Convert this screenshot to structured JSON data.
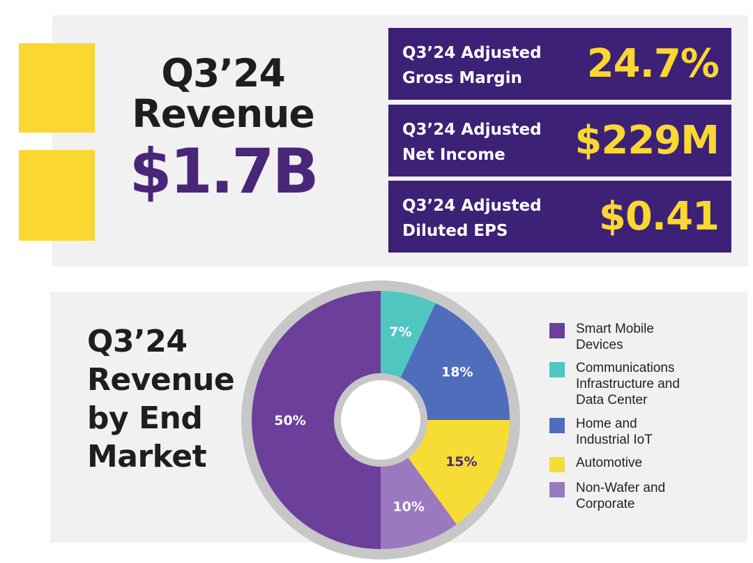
{
  "headline": {
    "revenue_title_line1": "Q3’24",
    "revenue_title_line2": "Revenue",
    "revenue_value": "$1.7B"
  },
  "metrics": [
    {
      "label_line1": "Q3’24 Adjusted",
      "label_line2": "Gross Margin",
      "value": "24.7%"
    },
    {
      "label_line1": "Q3’24 Adjusted",
      "label_line2": "Net Income",
      "value": "$229M"
    },
    {
      "label_line1": "Q3’24 Adjusted",
      "label_line2": "Diluted EPS",
      "value": "$0.41"
    }
  ],
  "market_section": {
    "title_lines": [
      "Q3’24",
      "Revenue",
      "by End",
      "Market"
    ]
  },
  "colors": {
    "purple": "#6b3f9a",
    "teal": "#4fc6bf",
    "blue": "#4f6dbb",
    "yellow": "#f6dd36",
    "lavender": "#9a79c0",
    "ring": "#c7c7c7",
    "accent_yellow": "#fbd831",
    "dark_purple": "#3d2176"
  },
  "chart_data": {
    "type": "pie",
    "title": "Q3’24 Revenue by End Market",
    "categories": [
      "Communications Infrastructure and Data Center",
      "Home and Industrial IoT",
      "Automotive",
      "Non-Wafer and Corporate",
      "Smart Mobile Devices"
    ],
    "values": [
      7,
      18,
      15,
      10,
      50
    ],
    "data_labels": [
      "7%",
      "18%",
      "15%",
      "10%",
      "50%"
    ],
    "slice_colors": [
      "#4fc6bf",
      "#4f6dbb",
      "#f6dd36",
      "#9a79c0",
      "#6b3f9a"
    ],
    "label_colors": [
      "#ffffff",
      "#ffffff",
      "#4a2679",
      "#ffffff",
      "#ffffff"
    ],
    "legend": [
      {
        "lines": [
          "Smart Mobile",
          "Devices"
        ],
        "color": "#6b3f9a"
      },
      {
        "lines": [
          "Communications",
          "Infrastructure and",
          "Data Center"
        ],
        "color": "#4fc6bf"
      },
      {
        "lines": [
          "Home and",
          "Industrial IoT"
        ],
        "color": "#4f6dbb"
      },
      {
        "lines": [
          "Automotive"
        ],
        "color": "#f6dd36"
      },
      {
        "lines": [
          "Non-Wafer and",
          "Corporate"
        ],
        "color": "#9a79c0"
      }
    ],
    "legend_position": "right"
  }
}
